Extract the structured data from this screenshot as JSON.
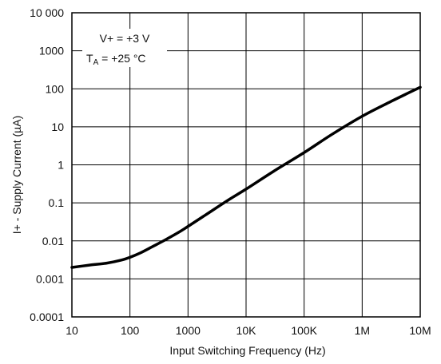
{
  "chart_data": {
    "type": "line",
    "title": "",
    "xlabel": "Input Switching Frequency (Hz)",
    "ylabel": "I+ - Supply Current (µA)",
    "x_scale": "log",
    "y_scale": "log",
    "xlim": [
      10,
      10000000
    ],
    "ylim": [
      0.0001,
      10000
    ],
    "grid": true,
    "x_ticks": [
      {
        "value": 10,
        "label": "10"
      },
      {
        "value": 100,
        "label": "100"
      },
      {
        "value": 1000,
        "label": "1000"
      },
      {
        "value": 10000,
        "label": "10K"
      },
      {
        "value": 100000,
        "label": "100K"
      },
      {
        "value": 1000000,
        "label": "1M"
      },
      {
        "value": 10000000,
        "label": "10M"
      }
    ],
    "y_ticks": [
      {
        "value": 0.0001,
        "label": "0.0001"
      },
      {
        "value": 0.001,
        "label": "0.001"
      },
      {
        "value": 0.01,
        "label": "0.01"
      },
      {
        "value": 0.1,
        "label": "0.1"
      },
      {
        "value": 1,
        "label": "1"
      },
      {
        "value": 10,
        "label": "10"
      },
      {
        "value": 100,
        "label": "100"
      },
      {
        "value": 1000,
        "label": "1000"
      },
      {
        "value": 10000,
        "label": "10 000"
      }
    ],
    "annotation": {
      "line1": "V+ = +3 V",
      "line2_prefix": "T",
      "line2_sub": "A",
      "line2_suffix": " = +25 °C"
    },
    "series": [
      {
        "color": "#000000",
        "x": [
          10,
          20,
          40,
          70,
          100,
          150,
          250,
          400,
          700,
          1000,
          2000,
          5000,
          10000,
          30000,
          100000,
          300000,
          1000000,
          3000000,
          10000000
        ],
        "y": [
          0.002,
          0.0023,
          0.0026,
          0.0031,
          0.0037,
          0.0048,
          0.0072,
          0.0105,
          0.017,
          0.024,
          0.048,
          0.12,
          0.23,
          0.68,
          2.1,
          6.3,
          19,
          45,
          110
        ]
      }
    ]
  }
}
